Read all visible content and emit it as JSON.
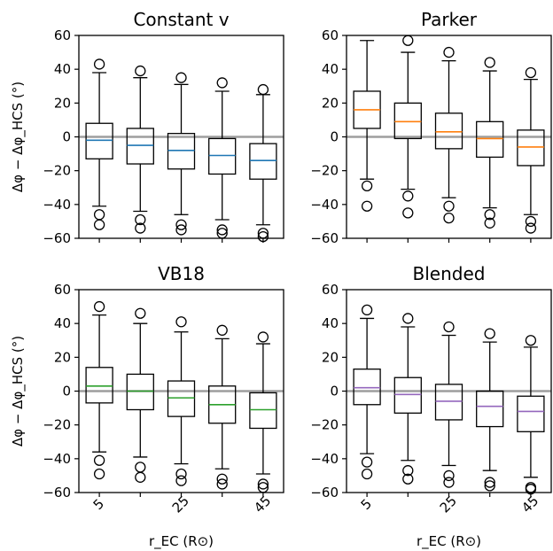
{
  "chart_data": [
    {
      "type": "box",
      "title": "Constant v",
      "ylabel": "Δφ − Δφ_HCS (°)",
      "xlabel": "",
      "ylim": [
        -60,
        60
      ],
      "yticks": [
        "60",
        "40",
        "20",
        "0",
        "−20",
        "−40",
        "−60"
      ],
      "xticks": [
        "",
        "",
        ""
      ],
      "reference_line_y": 0,
      "median_color": "#1f77b4",
      "boxes": [
        {
          "q1": -13,
          "median": -2,
          "q3": 8,
          "whisker_low": -41,
          "whisker_high": 38,
          "outliers": [
            43,
            -46,
            -52
          ]
        },
        {
          "q1": -16,
          "median": -5,
          "q3": 5,
          "whisker_low": -44,
          "whisker_high": 35,
          "outliers": [
            39,
            -49,
            -54
          ]
        },
        {
          "q1": -19,
          "median": -8,
          "q3": 2,
          "whisker_low": -46,
          "whisker_high": 31,
          "outliers": [
            35,
            -52,
            -55
          ]
        },
        {
          "q1": -22,
          "median": -11,
          "q3": -1,
          "whisker_low": -49,
          "whisker_high": 27,
          "outliers": [
            32,
            -55,
            -57
          ]
        },
        {
          "q1": -25,
          "median": -14,
          "q3": -4,
          "whisker_low": -52,
          "whisker_high": 25,
          "outliers": [
            28,
            -57,
            -59
          ]
        }
      ]
    },
    {
      "type": "box",
      "title": "Parker",
      "ylabel": "",
      "xlabel": "",
      "ylim": [
        -60,
        60
      ],
      "yticks": [
        "60",
        "40",
        "20",
        "0",
        "−20",
        "−40",
        "−60"
      ],
      "xticks": [
        "",
        "",
        ""
      ],
      "reference_line_y": 0,
      "median_color": "#ff7f0e",
      "boxes": [
        {
          "q1": 5,
          "median": 16,
          "q3": 27,
          "whisker_low": -25,
          "whisker_high": 57,
          "outliers": [
            -29,
            -41
          ]
        },
        {
          "q1": -1,
          "median": 9,
          "q3": 20,
          "whisker_low": -31,
          "whisker_high": 50,
          "outliers": [
            57,
            -35,
            -45
          ]
        },
        {
          "q1": -7,
          "median": 3,
          "q3": 14,
          "whisker_low": -36,
          "whisker_high": 45,
          "outliers": [
            50,
            -41,
            -48
          ]
        },
        {
          "q1": -12,
          "median": -1,
          "q3": 9,
          "whisker_low": -42,
          "whisker_high": 39,
          "outliers": [
            44,
            -46,
            -51
          ]
        },
        {
          "q1": -17,
          "median": -6,
          "q3": 4,
          "whisker_low": -46,
          "whisker_high": 34,
          "outliers": [
            38,
            -50,
            -54
          ]
        }
      ]
    },
    {
      "type": "box",
      "title": "VB18",
      "ylabel": "Δφ − Δφ_HCS (°)",
      "xlabel": "r_EC (R⊙)",
      "ylim": [
        -60,
        60
      ],
      "yticks": [
        "60",
        "40",
        "20",
        "0",
        "−20",
        "−40",
        "−60"
      ],
      "xticks": [
        "5",
        "25",
        "45"
      ],
      "reference_line_y": 0,
      "median_color": "#2ca02c",
      "boxes": [
        {
          "q1": -7,
          "median": 3,
          "q3": 14,
          "whisker_low": -36,
          "whisker_high": 45,
          "outliers": [
            50,
            -41,
            -49
          ]
        },
        {
          "q1": -11,
          "median": 0,
          "q3": 10,
          "whisker_low": -39,
          "whisker_high": 40,
          "outliers": [
            46,
            -45,
            -51
          ]
        },
        {
          "q1": -15,
          "median": -4,
          "q3": 6,
          "whisker_low": -43,
          "whisker_high": 35,
          "outliers": [
            41,
            -49,
            -53
          ]
        },
        {
          "q1": -19,
          "median": -8,
          "q3": 3,
          "whisker_low": -46,
          "whisker_high": 31,
          "outliers": [
            36,
            -52,
            -55
          ]
        },
        {
          "q1": -22,
          "median": -11,
          "q3": -1,
          "whisker_low": -49,
          "whisker_high": 28,
          "outliers": [
            32,
            -55,
            -57
          ]
        }
      ]
    },
    {
      "type": "box",
      "title": "Blended",
      "ylabel": "",
      "xlabel": "r_EC (R⊙)",
      "ylim": [
        -60,
        60
      ],
      "yticks": [
        "60",
        "40",
        "20",
        "0",
        "−20",
        "−40",
        "−60"
      ],
      "xticks": [
        "5",
        "25",
        "45"
      ],
      "reference_line_y": 0,
      "median_color": "#9467bd",
      "boxes": [
        {
          "q1": -8,
          "median": 2,
          "q3": 13,
          "whisker_low": -37,
          "whisker_high": 43,
          "outliers": [
            48,
            -42,
            -49
          ]
        },
        {
          "q1": -13,
          "median": -2,
          "q3": 8,
          "whisker_low": -41,
          "whisker_high": 38,
          "outliers": [
            43,
            -47,
            -52
          ]
        },
        {
          "q1": -17,
          "median": -6,
          "q3": 4,
          "whisker_low": -44,
          "whisker_high": 33,
          "outliers": [
            38,
            -50,
            -54
          ]
        },
        {
          "q1": -21,
          "median": -9,
          "q3": 0,
          "whisker_low": -47,
          "whisker_high": 29,
          "outliers": [
            34,
            -54,
            -56
          ]
        },
        {
          "q1": -24,
          "median": -12,
          "q3": -3,
          "whisker_low": -51,
          "whisker_high": 26,
          "outliers": [
            30,
            -57,
            -58
          ]
        }
      ]
    }
  ]
}
